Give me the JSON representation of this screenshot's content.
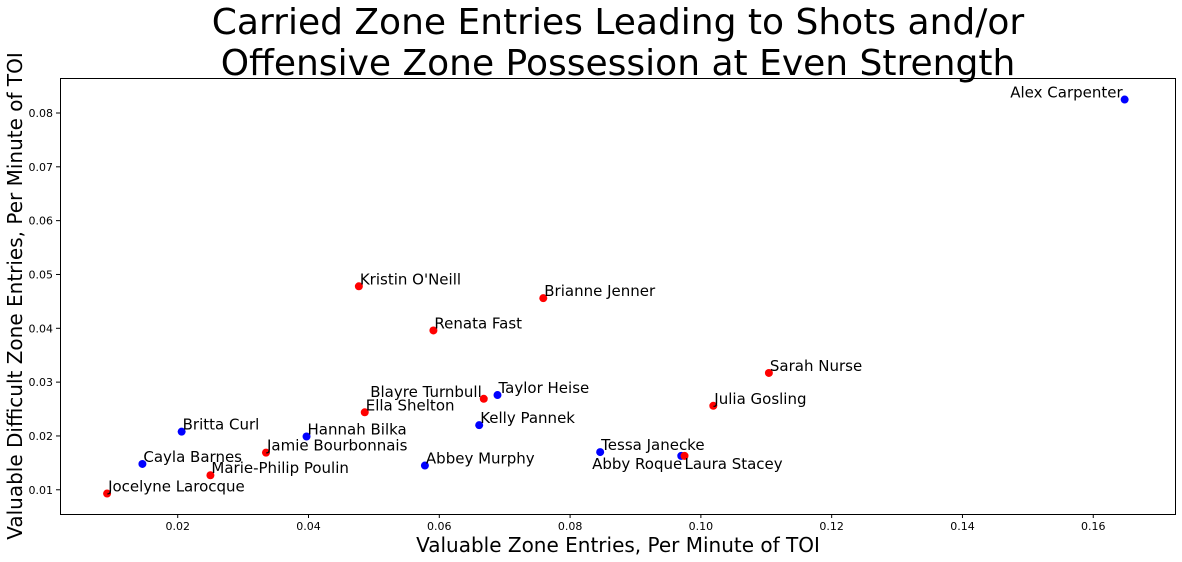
{
  "chart_data": {
    "type": "scatter",
    "title": "Carried Zone Entries Leading to Shots and/or\nOffensive Zone Possession at Even Strength",
    "xlabel": "Valuable Zone Entries, Per Minute of TOI",
    "ylabel": "Valuable Difficult Zone Entries, Per Minute of TOI",
    "xlim": [
      0.002,
      0.1725
    ],
    "ylim": [
      0.0055,
      0.0865
    ],
    "xticks": [
      "0.02",
      "0.04",
      "0.06",
      "0.08",
      "0.10",
      "0.12",
      "0.14",
      "0.16"
    ],
    "yticks": [
      "0.01",
      "0.02",
      "0.03",
      "0.04",
      "0.05",
      "0.06",
      "0.07",
      "0.08"
    ],
    "grid": false,
    "colors": {
      "red": "#ff0000",
      "blue": "#0000ff"
    },
    "points": [
      {
        "name": "Alex Carpenter",
        "x": 0.1648,
        "y": 0.0825,
        "color": "blue",
        "label_pos": "left"
      },
      {
        "name": "Kristin O'Neill",
        "x": 0.0477,
        "y": 0.0478,
        "color": "red"
      },
      {
        "name": "Brianne Jenner",
        "x": 0.0759,
        "y": 0.0456,
        "color": "red"
      },
      {
        "name": "Renata Fast",
        "x": 0.0591,
        "y": 0.0396,
        "color": "red"
      },
      {
        "name": "Sarah Nurse",
        "x": 0.1104,
        "y": 0.0317,
        "color": "red"
      },
      {
        "name": "Taylor Heise",
        "x": 0.0689,
        "y": 0.0276,
        "color": "blue"
      },
      {
        "name": "Blayre Turnbull",
        "x": 0.0668,
        "y": 0.0269,
        "color": "red",
        "label_pos": "left"
      },
      {
        "name": "Julia Gosling",
        "x": 0.1019,
        "y": 0.0256,
        "color": "red"
      },
      {
        "name": "Ella Shelton",
        "x": 0.0486,
        "y": 0.0244,
        "color": "red"
      },
      {
        "name": "Kelly Pannek",
        "x": 0.0661,
        "y": 0.022,
        "color": "blue"
      },
      {
        "name": "Britta Curl",
        "x": 0.0206,
        "y": 0.0208,
        "color": "blue"
      },
      {
        "name": "Hannah Bilka",
        "x": 0.0397,
        "y": 0.0199,
        "color": "blue"
      },
      {
        "name": "Jamie Bourbonnais",
        "x": 0.0335,
        "y": 0.0169,
        "color": "red"
      },
      {
        "name": "Tessa Janecke",
        "x": 0.0846,
        "y": 0.017,
        "color": "blue"
      },
      {
        "name": "Abby Roque",
        "x": 0.097,
        "y": 0.0163,
        "color": "blue",
        "label_pos": "below-left"
      },
      {
        "name": "Laura Stacey",
        "x": 0.0975,
        "y": 0.0163,
        "color": "red",
        "label_pos": "below"
      },
      {
        "name": "Cayla Barnes",
        "x": 0.0146,
        "y": 0.0148,
        "color": "blue"
      },
      {
        "name": "Abbey Murphy",
        "x": 0.0578,
        "y": 0.0145,
        "color": "blue"
      },
      {
        "name": "Marie-Philip Poulin",
        "x": 0.025,
        "y": 0.0127,
        "color": "red"
      },
      {
        "name": "Jocelyne Larocque",
        "x": 0.0092,
        "y": 0.0093,
        "color": "red"
      }
    ]
  }
}
